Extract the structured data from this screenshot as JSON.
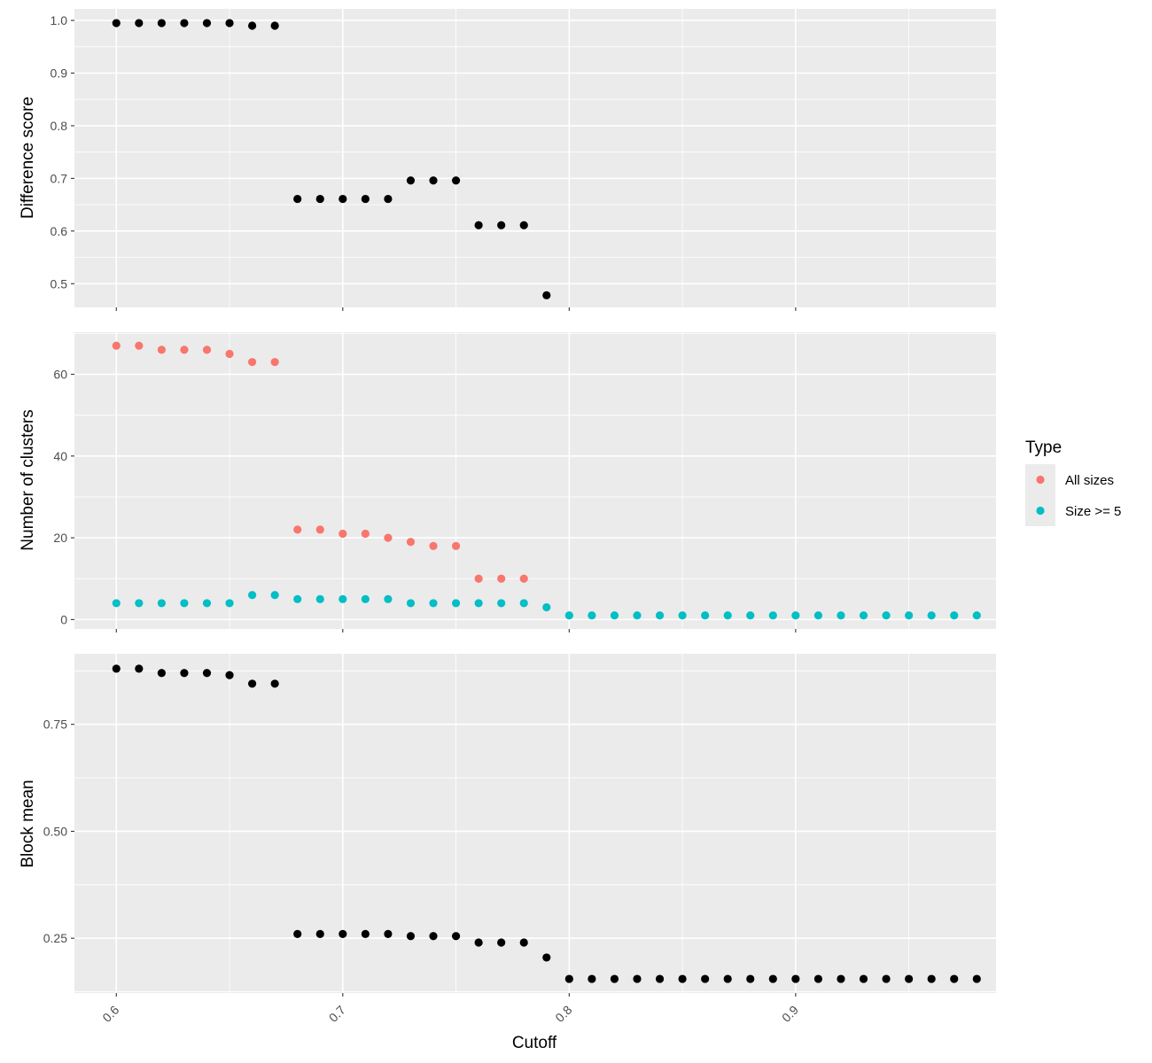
{
  "chart_data": [
    {
      "type": "scatter",
      "ylabel": "Difference score",
      "xlim": [
        0.5815,
        0.9885
      ],
      "ylim": [
        0.455,
        1.022
      ],
      "xticks": [
        0.6,
        0.7,
        0.8,
        0.9
      ],
      "yticks": [
        0.5,
        0.6,
        0.7,
        0.8,
        0.9,
        1.0
      ],
      "ytick_labels": [
        "0.5",
        "0.6",
        "0.7",
        "0.8",
        "0.9",
        "1.0"
      ],
      "series": [
        {
          "color": "#000000",
          "points": [
            [
              0.6,
              0.995
            ],
            [
              0.61,
              0.995
            ],
            [
              0.62,
              0.995
            ],
            [
              0.63,
              0.995
            ],
            [
              0.64,
              0.995
            ],
            [
              0.65,
              0.995
            ],
            [
              0.66,
              0.99
            ],
            [
              0.67,
              0.99
            ],
            [
              0.68,
              0.661
            ],
            [
              0.69,
              0.661
            ],
            [
              0.7,
              0.661
            ],
            [
              0.71,
              0.661
            ],
            [
              0.72,
              0.661
            ],
            [
              0.73,
              0.696
            ],
            [
              0.74,
              0.696
            ],
            [
              0.75,
              0.696
            ],
            [
              0.76,
              0.611
            ],
            [
              0.77,
              0.611
            ],
            [
              0.78,
              0.611
            ],
            [
              0.79,
              0.478
            ]
          ]
        }
      ]
    },
    {
      "type": "scatter",
      "ylabel": "Number of clusters",
      "xlim": [
        0.5815,
        0.9885
      ],
      "ylim": [
        -2.3,
        70.3
      ],
      "xticks": [
        0.6,
        0.7,
        0.8,
        0.9
      ],
      "yticks": [
        0,
        20,
        40,
        60
      ],
      "ytick_labels": [
        "0",
        "20",
        "40",
        "60"
      ],
      "series": [
        {
          "name": "All sizes",
          "color": "#f8766d",
          "points": [
            [
              0.6,
              67
            ],
            [
              0.61,
              67
            ],
            [
              0.62,
              66
            ],
            [
              0.63,
              66
            ],
            [
              0.64,
              66
            ],
            [
              0.65,
              65
            ],
            [
              0.66,
              63
            ],
            [
              0.67,
              63
            ],
            [
              0.68,
              22
            ],
            [
              0.69,
              22
            ],
            [
              0.7,
              21
            ],
            [
              0.71,
              21
            ],
            [
              0.72,
              20
            ],
            [
              0.73,
              19
            ],
            [
              0.74,
              18
            ],
            [
              0.75,
              18
            ],
            [
              0.76,
              10
            ],
            [
              0.77,
              10
            ],
            [
              0.78,
              10
            ]
          ]
        },
        {
          "name": "Size >= 5",
          "color": "#00bfc4",
          "points": [
            [
              0.6,
              4
            ],
            [
              0.61,
              4
            ],
            [
              0.62,
              4
            ],
            [
              0.63,
              4
            ],
            [
              0.64,
              4
            ],
            [
              0.65,
              4
            ],
            [
              0.66,
              6
            ],
            [
              0.67,
              6
            ],
            [
              0.68,
              5
            ],
            [
              0.69,
              5
            ],
            [
              0.7,
              5
            ],
            [
              0.71,
              5
            ],
            [
              0.72,
              5
            ],
            [
              0.73,
              4
            ],
            [
              0.74,
              4
            ],
            [
              0.75,
              4
            ],
            [
              0.76,
              4
            ],
            [
              0.77,
              4
            ],
            [
              0.78,
              4
            ],
            [
              0.79,
              3
            ],
            [
              0.8,
              1
            ],
            [
              0.81,
              1
            ],
            [
              0.82,
              1
            ],
            [
              0.83,
              1
            ],
            [
              0.84,
              1
            ],
            [
              0.85,
              1
            ],
            [
              0.86,
              1
            ],
            [
              0.87,
              1
            ],
            [
              0.88,
              1
            ],
            [
              0.89,
              1
            ],
            [
              0.9,
              1
            ],
            [
              0.91,
              1
            ],
            [
              0.92,
              1
            ],
            [
              0.93,
              1
            ],
            [
              0.94,
              1
            ],
            [
              0.95,
              1
            ],
            [
              0.96,
              1
            ],
            [
              0.97,
              1
            ],
            [
              0.98,
              1
            ]
          ]
        }
      ]
    },
    {
      "type": "scatter",
      "ylabel": "Block mean",
      "xlabel": "Cutoff",
      "xlim": [
        0.5815,
        0.9885
      ],
      "ylim": [
        0.122,
        0.915
      ],
      "xticks": [
        0.6,
        0.7,
        0.8,
        0.9
      ],
      "xtick_labels": [
        "0.6",
        "0.7",
        "0.8",
        "0.9"
      ],
      "yticks": [
        0.25,
        0.5,
        0.75
      ],
      "ytick_labels": [
        "0.25",
        "0.50",
        "0.75"
      ],
      "series": [
        {
          "color": "#000000",
          "points": [
            [
              0.6,
              0.88
            ],
            [
              0.61,
              0.88
            ],
            [
              0.62,
              0.87
            ],
            [
              0.63,
              0.87
            ],
            [
              0.64,
              0.87
            ],
            [
              0.65,
              0.865
            ],
            [
              0.66,
              0.845
            ],
            [
              0.67,
              0.845
            ],
            [
              0.68,
              0.26
            ],
            [
              0.69,
              0.26
            ],
            [
              0.7,
              0.26
            ],
            [
              0.71,
              0.26
            ],
            [
              0.72,
              0.26
            ],
            [
              0.73,
              0.255
            ],
            [
              0.74,
              0.255
            ],
            [
              0.75,
              0.255
            ],
            [
              0.76,
              0.24
            ],
            [
              0.77,
              0.24
            ],
            [
              0.78,
              0.24
            ],
            [
              0.79,
              0.205
            ],
            [
              0.8,
              0.155
            ],
            [
              0.81,
              0.155
            ],
            [
              0.82,
              0.155
            ],
            [
              0.83,
              0.155
            ],
            [
              0.84,
              0.155
            ],
            [
              0.85,
              0.155
            ],
            [
              0.86,
              0.155
            ],
            [
              0.87,
              0.155
            ],
            [
              0.88,
              0.155
            ],
            [
              0.89,
              0.155
            ],
            [
              0.9,
              0.155
            ],
            [
              0.91,
              0.155
            ],
            [
              0.92,
              0.155
            ],
            [
              0.93,
              0.155
            ],
            [
              0.94,
              0.155
            ],
            [
              0.95,
              0.155
            ],
            [
              0.96,
              0.155
            ],
            [
              0.97,
              0.155
            ],
            [
              0.98,
              0.155
            ]
          ]
        }
      ]
    }
  ],
  "legend": {
    "title": "Type",
    "placement": "right",
    "items": [
      {
        "label": "All sizes",
        "color": "#f8766d"
      },
      {
        "label": "Size >= 5",
        "color": "#00bfc4"
      }
    ]
  }
}
